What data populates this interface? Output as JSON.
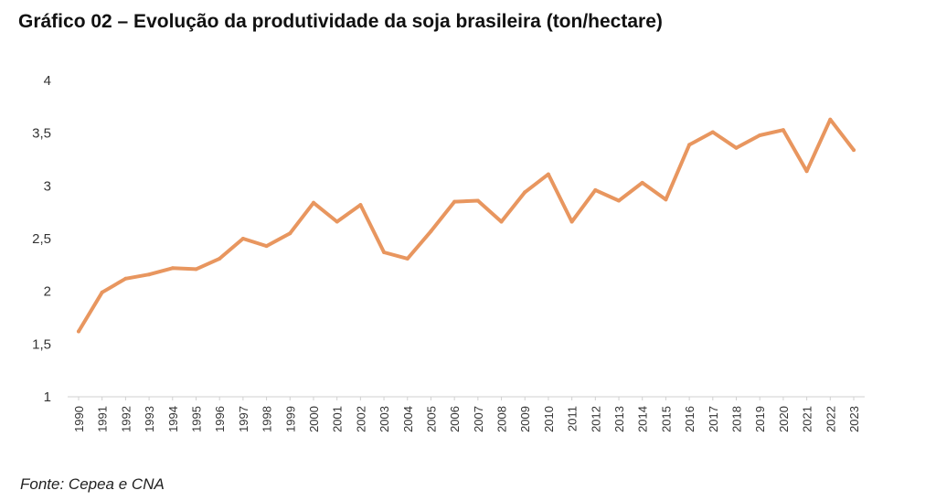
{
  "title": "Gráfico 02 – Evolução da produtividade da soja brasileira (ton/hectare)",
  "source": "Fonte: Cepea e CNA",
  "chart_data": {
    "type": "line",
    "title": "Gráfico 02 – Evolução da produtividade da soja brasileira (ton/hectare)",
    "xlabel": "",
    "ylabel": "",
    "ylim": [
      1,
      4
    ],
    "yticks": [
      "1",
      "1,5",
      "2",
      "2,5",
      "3",
      "3,5",
      "4"
    ],
    "ytick_values": [
      1,
      1.5,
      2,
      2.5,
      3,
      3.5,
      4
    ],
    "grid": false,
    "legend": "none",
    "categories": [
      "1990",
      "1991",
      "1992",
      "1993",
      "1994",
      "1995",
      "1996",
      "1997",
      "1998",
      "1999",
      "2000",
      "2001",
      "2002",
      "2003",
      "2004",
      "2005",
      "2006",
      "2007",
      "2008",
      "2009",
      "2010",
      "2011",
      "2012",
      "2013",
      "2014",
      "2015",
      "2016",
      "2017",
      "2018",
      "2019",
      "2020",
      "2021",
      "2022",
      "2023"
    ],
    "series": [
      {
        "color": "#e8965f",
        "values": [
          1.62,
          1.99,
          2.12,
          2.16,
          2.22,
          2.21,
          2.31,
          2.5,
          2.43,
          2.55,
          2.84,
          2.66,
          2.82,
          2.37,
          2.31,
          2.57,
          2.85,
          2.86,
          2.66,
          2.94,
          3.11,
          2.66,
          2.96,
          2.86,
          3.03,
          2.87,
          3.39,
          3.51,
          3.36,
          3.48,
          3.53,
          3.14,
          3.63,
          3.34
        ]
      }
    ]
  }
}
